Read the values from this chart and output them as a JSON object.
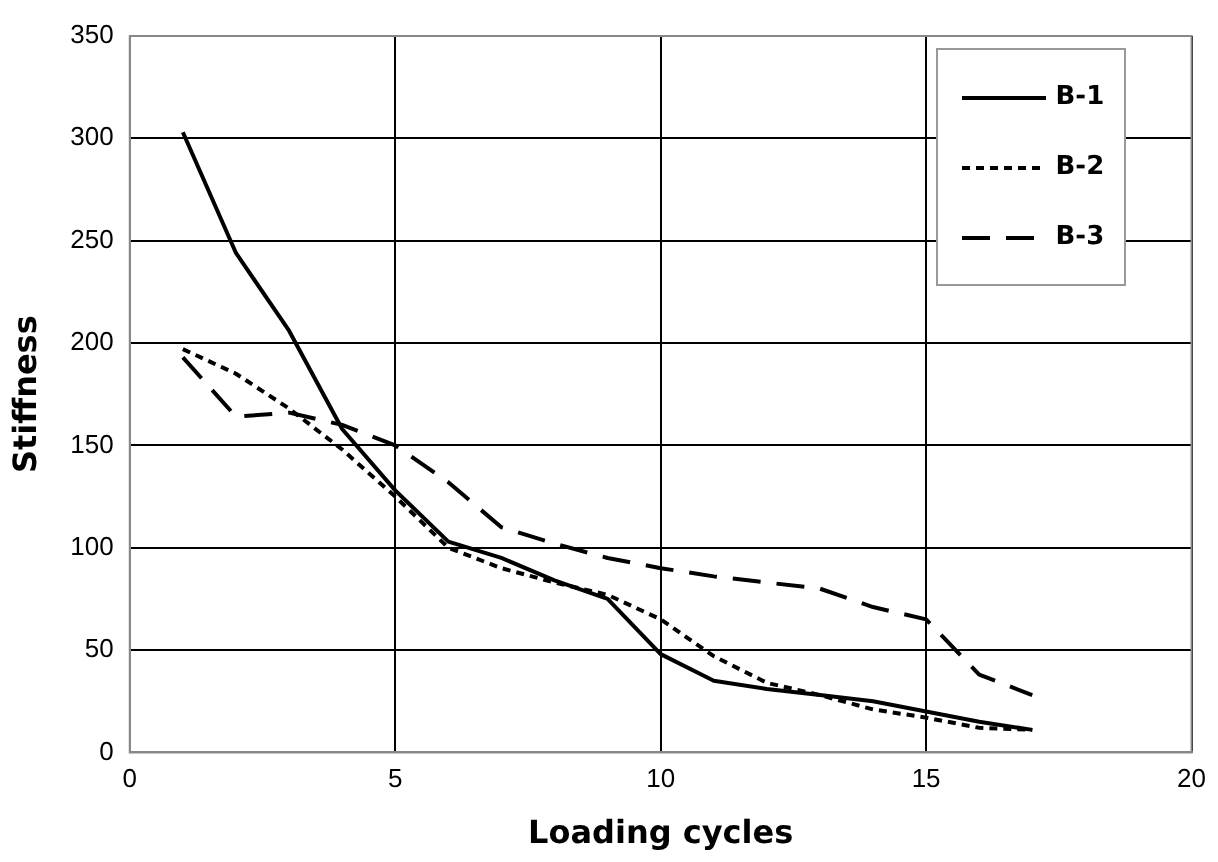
{
  "chart_data": {
    "type": "line",
    "xlabel": "Loading cycles",
    "ylabel": "Stiffness",
    "x": [
      1,
      2,
      3,
      4,
      5,
      6,
      7,
      8,
      9,
      10,
      11,
      12,
      13,
      14,
      15,
      16,
      17
    ],
    "series": [
      {
        "name": "B-1",
        "color": "#000000",
        "line_style": "solid",
        "values": [
          303,
          244,
          206,
          158,
          128,
          103,
          95,
          84,
          75,
          48,
          35,
          31,
          28,
          25,
          20,
          15,
          11
        ]
      },
      {
        "name": "B-2",
        "color": "#000000",
        "line_style": "dotted",
        "values": [
          197,
          185,
          168,
          148,
          125,
          100,
          90,
          83,
          77,
          65,
          47,
          34,
          28,
          21,
          17,
          12,
          11
        ]
      },
      {
        "name": "B-3",
        "color": "#000000",
        "line_style": "dashed",
        "values": [
          193,
          164,
          166,
          160,
          150,
          132,
          110,
          102,
          95,
          90,
          86,
          83,
          80,
          71,
          65,
          38,
          28
        ]
      }
    ],
    "xlim": [
      0,
      20
    ],
    "xticks": [
      0,
      5,
      10,
      15,
      20
    ],
    "ylim": [
      0,
      350
    ],
    "yticks": [
      0,
      50,
      100,
      150,
      200,
      250,
      300,
      350
    ],
    "grid": true,
    "legend": "top right",
    "marker": "none"
  }
}
